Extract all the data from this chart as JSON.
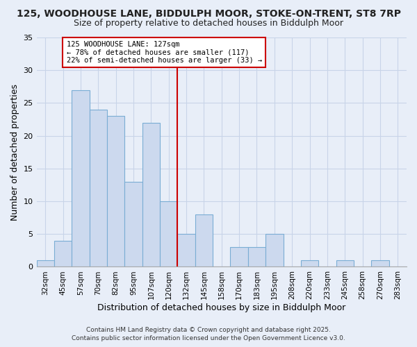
{
  "title1": "125, WOODHOUSE LANE, BIDDULPH MOOR, STOKE-ON-TRENT, ST8 7RP",
  "title2": "Size of property relative to detached houses in Biddulph Moor",
  "xlabel": "Distribution of detached houses by size in Biddulph Moor",
  "ylabel": "Number of detached properties",
  "bin_labels": [
    "32sqm",
    "45sqm",
    "57sqm",
    "70sqm",
    "82sqm",
    "95sqm",
    "107sqm",
    "120sqm",
    "132sqm",
    "145sqm",
    "158sqm",
    "170sqm",
    "183sqm",
    "195sqm",
    "208sqm",
    "220sqm",
    "233sqm",
    "245sqm",
    "258sqm",
    "270sqm",
    "283sqm"
  ],
  "bar_values": [
    1,
    4,
    27,
    24,
    23,
    13,
    22,
    10,
    5,
    8,
    0,
    3,
    3,
    5,
    0,
    1,
    0,
    1,
    0,
    1,
    0
  ],
  "bar_color": "#ccd9ee",
  "bar_edge_color": "#7aadd4",
  "ylim": [
    0,
    35
  ],
  "yticks": [
    0,
    5,
    10,
    15,
    20,
    25,
    30,
    35
  ],
  "vline_x_idx": 7.5,
  "vline_color": "#cc0000",
  "annotation_title": "125 WOODHOUSE LANE: 127sqm",
  "annotation_line1": "← 78% of detached houses are smaller (117)",
  "annotation_line2": "22% of semi-detached houses are larger (33) →",
  "annotation_box_color": "#ffffff",
  "annotation_box_edge": "#cc0000",
  "footer1": "Contains HM Land Registry data © Crown copyright and database right 2025.",
  "footer2": "Contains public sector information licensed under the Open Government Licence v3.0.",
  "background_color": "#e8eef8",
  "grid_color": "#c8d4e8",
  "title1_fontsize": 10,
  "title2_fontsize": 9
}
